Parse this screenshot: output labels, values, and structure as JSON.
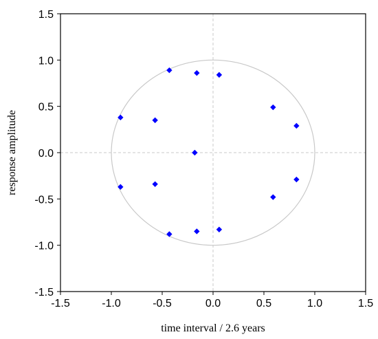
{
  "chart_data": {
    "type": "scatter",
    "title": "",
    "xlabel": "time interval / 2.6 years",
    "ylabel": "response amplitude",
    "xlim": [
      -1.5,
      1.5
    ],
    "ylim": [
      -1.5,
      1.5
    ],
    "xticks": [
      -1.5,
      -1.0,
      -0.5,
      0.0,
      0.5,
      1.0,
      1.5
    ],
    "yticks": [
      -1.5,
      -1.0,
      -0.5,
      0.0,
      0.5,
      1.0,
      1.5
    ],
    "xtick_labels": [
      "-1.5",
      "-1.0",
      "-0.5",
      "0.0",
      "0.5",
      "1.0",
      "1.5"
    ],
    "ytick_labels": [
      "-1.5",
      "-1.0",
      "-0.5",
      "0.0",
      "0.5",
      "1.0",
      "1.5"
    ],
    "grid": false,
    "reference_lines": {
      "x": 0,
      "y": 0,
      "style": "dashed"
    },
    "reference_circle": {
      "center": [
        0,
        0
      ],
      "radius": 1
    },
    "marker_color": "#0000ff",
    "circle_color": "#c8c8c8",
    "refline_color": "#c8c8c8",
    "series": [
      {
        "points": [
          {
            "x": -0.43,
            "y": 0.89
          },
          {
            "x": -0.16,
            "y": 0.86
          },
          {
            "x": 0.06,
            "y": 0.84
          },
          {
            "x": -0.91,
            "y": 0.38
          },
          {
            "x": -0.57,
            "y": 0.35
          },
          {
            "x": 0.59,
            "y": 0.49
          },
          {
            "x": 0.82,
            "y": 0.29
          },
          {
            "x": -0.18,
            "y": 0.0
          },
          {
            "x": -0.91,
            "y": -0.37
          },
          {
            "x": -0.57,
            "y": -0.34
          },
          {
            "x": 0.59,
            "y": -0.48
          },
          {
            "x": 0.82,
            "y": -0.29
          },
          {
            "x": -0.43,
            "y": -0.88
          },
          {
            "x": -0.16,
            "y": -0.85
          },
          {
            "x": 0.06,
            "y": -0.83
          }
        ]
      }
    ]
  }
}
